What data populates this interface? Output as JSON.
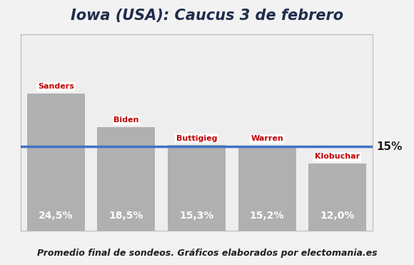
{
  "chart_data": {
    "type": "bar",
    "title": "Iowa (USA): Caucus 3 de febrero",
    "footer": "Promedio final de sondeos. Gráficos elaborados por electomania.es",
    "categories": [
      "Sanders",
      "Biden",
      "Buttigieg",
      "Warren",
      "Klobuchar"
    ],
    "values": [
      24.5,
      18.5,
      15.3,
      15.2,
      12.0
    ],
    "value_labels": [
      "24,5%",
      "18,5%",
      "15,3%",
      "15,2%",
      "12,0%"
    ],
    "color": "#a6a6a6",
    "reference_line": {
      "value": 15,
      "label": "15%",
      "color": "#4472c4"
    },
    "ylim": [
      0,
      35
    ],
    "tick_labels": false,
    "grid": false,
    "data_labels": true
  }
}
